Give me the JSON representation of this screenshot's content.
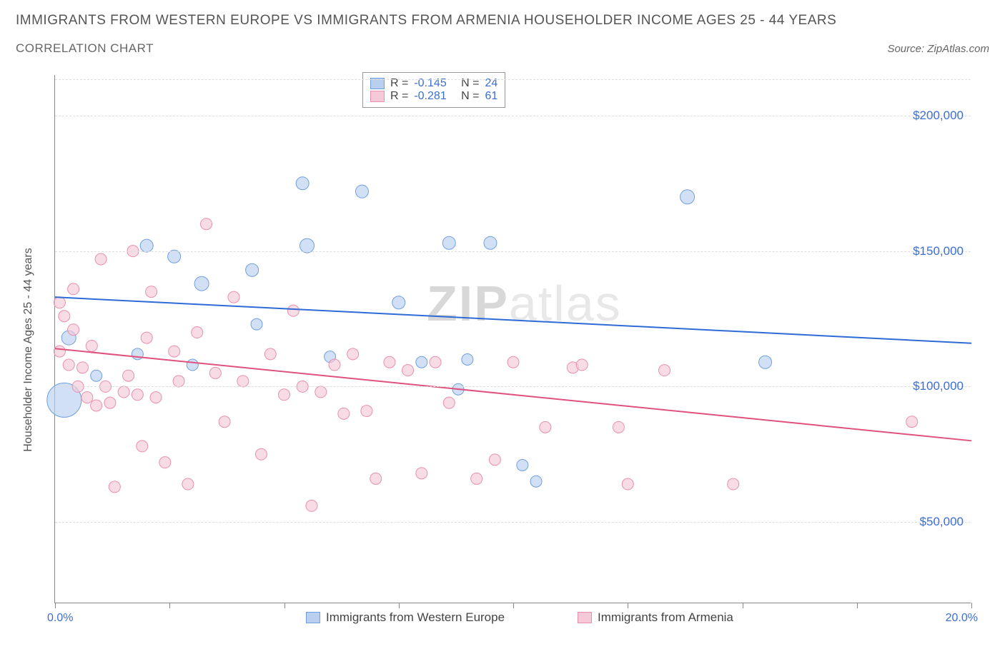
{
  "title": "IMMIGRANTS FROM WESTERN EUROPE VS IMMIGRANTS FROM ARMENIA HOUSEHOLDER INCOME AGES 25 - 44 YEARS",
  "subtitle": "CORRELATION CHART",
  "source_label": "Source: ZipAtlas.com",
  "watermark_a": "ZIP",
  "watermark_b": "atlas",
  "chart": {
    "type": "scatter",
    "xlim": [
      0,
      20
    ],
    "ylim": [
      20000,
      215000
    ],
    "x_start_label": "0.0%",
    "x_end_label": "20.0%",
    "xticks": [
      0,
      2.5,
      5,
      7.5,
      10,
      12.5,
      15,
      17.5,
      20
    ],
    "yticks": [
      50000,
      100000,
      150000,
      200000
    ],
    "ytick_labels": [
      "$50,000",
      "$100,000",
      "$150,000",
      "$200,000"
    ],
    "yaxis_title": "Householder Income Ages 25 - 44 years",
    "grid_color": "#dddddd",
    "axis_color": "#888888",
    "label_color": "#3b6fd6",
    "background_color": "#ffffff",
    "series": [
      {
        "name": "Immigrants from Western Europe",
        "fill": "#b9cff0",
        "stroke": "#6f9fe0",
        "r_value": "-0.145",
        "n_value": "24",
        "trend": {
          "x1": 0,
          "y1": 133000,
          "x2": 20,
          "y2": 116000,
          "stroke": "#2e6bd6"
        },
        "points": [
          {
            "x": 0.2,
            "y": 95000,
            "r": 24
          },
          {
            "x": 0.3,
            "y": 118000,
            "r": 10
          },
          {
            "x": 2.0,
            "y": 152000,
            "r": 9
          },
          {
            "x": 2.6,
            "y": 148000,
            "r": 9
          },
          {
            "x": 3.2,
            "y": 138000,
            "r": 10
          },
          {
            "x": 4.3,
            "y": 143000,
            "r": 9
          },
          {
            "x": 4.4,
            "y": 123000,
            "r": 8
          },
          {
            "x": 5.4,
            "y": 175000,
            "r": 9
          },
          {
            "x": 5.5,
            "y": 152000,
            "r": 10
          },
          {
            "x": 6.0,
            "y": 111000,
            "r": 8
          },
          {
            "x": 6.7,
            "y": 172000,
            "r": 9
          },
          {
            "x": 7.5,
            "y": 131000,
            "r": 9
          },
          {
            "x": 8.0,
            "y": 109000,
            "r": 8
          },
          {
            "x": 8.6,
            "y": 153000,
            "r": 9
          },
          {
            "x": 8.8,
            "y": 99000,
            "r": 8
          },
          {
            "x": 9.0,
            "y": 110000,
            "r": 8
          },
          {
            "x": 9.5,
            "y": 153000,
            "r": 9
          },
          {
            "x": 10.2,
            "y": 71000,
            "r": 8
          },
          {
            "x": 10.5,
            "y": 65000,
            "r": 8
          },
          {
            "x": 13.8,
            "y": 170000,
            "r": 10
          },
          {
            "x": 15.5,
            "y": 109000,
            "r": 9
          },
          {
            "x": 1.8,
            "y": 112000,
            "r": 8
          },
          {
            "x": 0.9,
            "y": 104000,
            "r": 8
          },
          {
            "x": 3.0,
            "y": 108000,
            "r": 8
          }
        ]
      },
      {
        "name": "Immigrants from Armenia",
        "fill": "#f5c9d7",
        "stroke": "#e88fb0",
        "r_value": "-0.281",
        "n_value": "61",
        "trend": {
          "x1": 0,
          "y1": 114000,
          "x2": 20,
          "y2": 80000,
          "stroke": "#e0527e"
        },
        "points": [
          {
            "x": 0.1,
            "y": 131000,
            "r": 8
          },
          {
            "x": 0.1,
            "y": 113000,
            "r": 8
          },
          {
            "x": 0.2,
            "y": 126000,
            "r": 8
          },
          {
            "x": 0.3,
            "y": 108000,
            "r": 8
          },
          {
            "x": 0.4,
            "y": 121000,
            "r": 8
          },
          {
            "x": 0.5,
            "y": 100000,
            "r": 8
          },
          {
            "x": 0.6,
            "y": 107000,
            "r": 8
          },
          {
            "x": 0.7,
            "y": 96000,
            "r": 8
          },
          {
            "x": 0.8,
            "y": 115000,
            "r": 8
          },
          {
            "x": 0.9,
            "y": 93000,
            "r": 8
          },
          {
            "x": 1.0,
            "y": 147000,
            "r": 8
          },
          {
            "x": 1.1,
            "y": 100000,
            "r": 8
          },
          {
            "x": 1.2,
            "y": 94000,
            "r": 8
          },
          {
            "x": 1.3,
            "y": 63000,
            "r": 8
          },
          {
            "x": 1.5,
            "y": 98000,
            "r": 8
          },
          {
            "x": 1.6,
            "y": 104000,
            "r": 8
          },
          {
            "x": 1.7,
            "y": 150000,
            "r": 8
          },
          {
            "x": 1.8,
            "y": 97000,
            "r": 8
          },
          {
            "x": 1.9,
            "y": 78000,
            "r": 8
          },
          {
            "x": 2.1,
            "y": 135000,
            "r": 8
          },
          {
            "x": 2.2,
            "y": 96000,
            "r": 8
          },
          {
            "x": 2.4,
            "y": 72000,
            "r": 8
          },
          {
            "x": 2.6,
            "y": 113000,
            "r": 8
          },
          {
            "x": 2.7,
            "y": 102000,
            "r": 8
          },
          {
            "x": 2.9,
            "y": 64000,
            "r": 8
          },
          {
            "x": 3.1,
            "y": 120000,
            "r": 8
          },
          {
            "x": 3.3,
            "y": 160000,
            "r": 8
          },
          {
            "x": 3.5,
            "y": 105000,
            "r": 8
          },
          {
            "x": 3.7,
            "y": 87000,
            "r": 8
          },
          {
            "x": 3.9,
            "y": 133000,
            "r": 8
          },
          {
            "x": 4.1,
            "y": 102000,
            "r": 8
          },
          {
            "x": 4.5,
            "y": 75000,
            "r": 8
          },
          {
            "x": 4.7,
            "y": 112000,
            "r": 8
          },
          {
            "x": 5.0,
            "y": 97000,
            "r": 8
          },
          {
            "x": 5.2,
            "y": 128000,
            "r": 8
          },
          {
            "x": 5.4,
            "y": 100000,
            "r": 8
          },
          {
            "x": 5.6,
            "y": 56000,
            "r": 8
          },
          {
            "x": 5.8,
            "y": 98000,
            "r": 8
          },
          {
            "x": 6.1,
            "y": 108000,
            "r": 8
          },
          {
            "x": 6.3,
            "y": 90000,
            "r": 8
          },
          {
            "x": 6.5,
            "y": 112000,
            "r": 8
          },
          {
            "x": 6.8,
            "y": 91000,
            "r": 8
          },
          {
            "x": 7.0,
            "y": 66000,
            "r": 8
          },
          {
            "x": 7.3,
            "y": 109000,
            "r": 8
          },
          {
            "x": 7.7,
            "y": 106000,
            "r": 8
          },
          {
            "x": 8.0,
            "y": 68000,
            "r": 8
          },
          {
            "x": 8.3,
            "y": 109000,
            "r": 8
          },
          {
            "x": 8.6,
            "y": 94000,
            "r": 8
          },
          {
            "x": 9.2,
            "y": 66000,
            "r": 8
          },
          {
            "x": 9.6,
            "y": 73000,
            "r": 8
          },
          {
            "x": 10.0,
            "y": 109000,
            "r": 8
          },
          {
            "x": 10.7,
            "y": 85000,
            "r": 8
          },
          {
            "x": 11.3,
            "y": 107000,
            "r": 8
          },
          {
            "x": 11.5,
            "y": 108000,
            "r": 8
          },
          {
            "x": 12.3,
            "y": 85000,
            "r": 8
          },
          {
            "x": 12.5,
            "y": 64000,
            "r": 8
          },
          {
            "x": 13.3,
            "y": 106000,
            "r": 8
          },
          {
            "x": 14.8,
            "y": 64000,
            "r": 8
          },
          {
            "x": 18.7,
            "y": 87000,
            "r": 8
          },
          {
            "x": 0.4,
            "y": 136000,
            "r": 8
          },
          {
            "x": 2.0,
            "y": 118000,
            "r": 8
          }
        ]
      }
    ],
    "legend_box": {
      "r_label": "R =",
      "n_label": "N ="
    },
    "bottom_legend": [
      {
        "label": "Immigrants from Western Europe",
        "fill": "#b9cff0",
        "stroke": "#6f9fe0"
      },
      {
        "label": "Immigrants from Armenia",
        "fill": "#f5c9d7",
        "stroke": "#e88fb0"
      }
    ]
  }
}
